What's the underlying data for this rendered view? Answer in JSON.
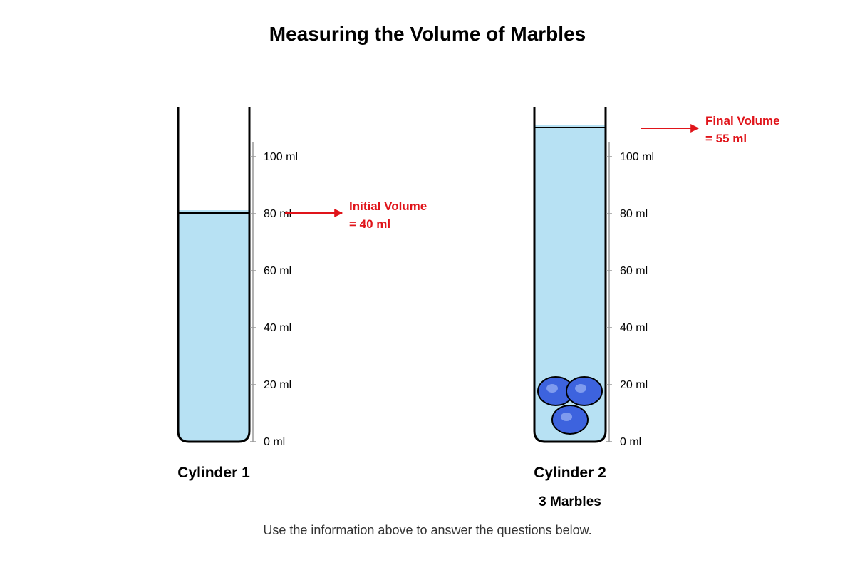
{
  "title": "Measuring the Volume of Marbles",
  "scale_labels": [
    "0 ml",
    "20 ml",
    "40 ml",
    "60 ml",
    "80 ml",
    "100 ml"
  ],
  "cylinder1": {
    "label": "Cylinder 1",
    "fill_level_ml": 80,
    "callout_line1": "Initial Volume",
    "callout_line2": "= 40 ml"
  },
  "cylinder2": {
    "label": "Cylinder 2",
    "sublabel": "3 Marbles",
    "fill_level_ml": 110,
    "marble_count": 3,
    "callout_line1": "Final Volume",
    "callout_line2": "= 55 ml"
  },
  "footer": "Use the information above to answer the questions below.",
  "colors": {
    "water": "#b7e1f3",
    "marble": "#3d63de",
    "marble_highlight": "#7f9bee",
    "callout": "#e0141a",
    "scale": "#999999"
  }
}
